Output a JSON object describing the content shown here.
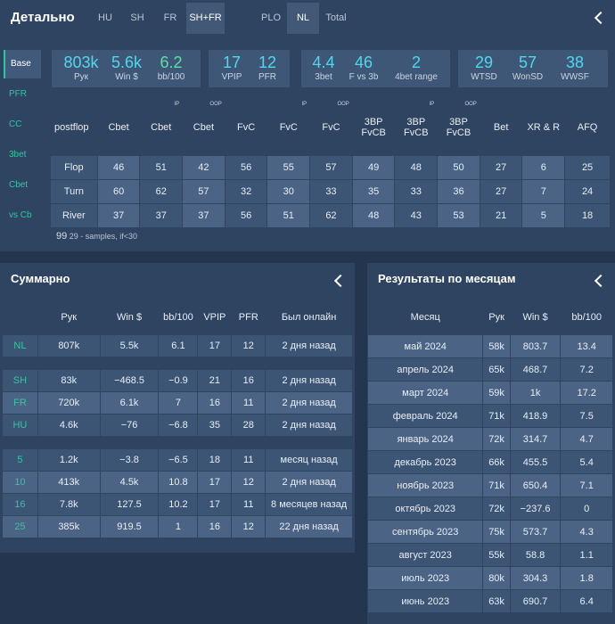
{
  "detail": {
    "title": "Детально",
    "tabs": [
      "HU",
      "SH",
      "FR",
      "SH+FR",
      "PLO",
      "NL",
      "Total"
    ],
    "sidenav": [
      "Base",
      "PFR",
      "CC",
      "3bet",
      "Cbet",
      "vs Cb"
    ],
    "stats": [
      {
        "value": "803k",
        "label": "Рук",
        "color": "cyan"
      },
      {
        "value": "5.6k",
        "label": "Win $",
        "color": "cyan"
      },
      {
        "value": "6.2",
        "label": "bb/100",
        "color": "green"
      },
      {
        "value": "17",
        "label": "VPIP",
        "color": "cyan"
      },
      {
        "value": "12",
        "label": "PFR",
        "color": "cyan"
      },
      {
        "value": "4.4",
        "label": "3bet",
        "color": "cyan"
      },
      {
        "value": "46",
        "label": "F vs 3b",
        "color": "cyan"
      },
      {
        "value": "2",
        "label": "4bet range",
        "color": "cyan"
      },
      {
        "value": "29",
        "label": "WTSD",
        "color": "cyan"
      },
      {
        "value": "57",
        "label": "WonSD",
        "color": "cyan"
      },
      {
        "value": "38",
        "label": "WWSF",
        "color": "cyan"
      }
    ],
    "postflop_headers": [
      {
        "label": "postflop",
        "sup": ""
      },
      {
        "label": "Cbet",
        "sup": ""
      },
      {
        "label": "Cbet",
        "sup": "IP"
      },
      {
        "label": "Cbet",
        "sup": "OOP"
      },
      {
        "label": "FvC",
        "sup": ""
      },
      {
        "label": "FvC",
        "sup": "IP"
      },
      {
        "label": "FvC",
        "sup": "OOP"
      },
      {
        "label": "3BP FvCB",
        "sup": ""
      },
      {
        "label": "3BP FvCB",
        "sup": "IP"
      },
      {
        "label": "3BP FvCB",
        "sup": "OOP"
      },
      {
        "label": "Bet",
        "sup": ""
      },
      {
        "label": "XR & R",
        "sup": ""
      },
      {
        "label": "AFQ",
        "sup": ""
      }
    ],
    "postflop_rows": [
      [
        "Flop",
        "46",
        "51",
        "42",
        "56",
        "55",
        "57",
        "49",
        "48",
        "50",
        "27",
        "6",
        "25"
      ],
      [
        "Turn",
        "60",
        "62",
        "57",
        "32",
        "30",
        "33",
        "35",
        "33",
        "36",
        "27",
        "7",
        "24"
      ],
      [
        "River",
        "37",
        "37",
        "37",
        "56",
        "51",
        "62",
        "48",
        "43",
        "53",
        "21",
        "5",
        "18"
      ]
    ],
    "note_value": "99",
    "note_text": "29 - samples, if<30"
  },
  "summary": {
    "title": "Суммарно",
    "headers": [
      "",
      "Рук",
      "Win $",
      "bb/100",
      "VPIP",
      "PFR",
      "Был онлайн"
    ],
    "groups": [
      [
        [
          "NL",
          "807k",
          "5.5k",
          "6.1",
          "17",
          "12",
          "2 дня назад"
        ]
      ],
      [
        [
          "SH",
          "83k",
          "−468.5",
          "−0.9",
          "21",
          "16",
          "2 дня назад"
        ],
        [
          "FR",
          "720k",
          "6.1k",
          "7",
          "16",
          "11",
          "2 дня назад"
        ],
        [
          "HU",
          "4.6k",
          "−76",
          "−6.8",
          "35",
          "28",
          "2 дня назад"
        ]
      ],
      [
        [
          "5",
          "1.2k",
          "−3.8",
          "−6.5",
          "18",
          "11",
          "месяц назад"
        ],
        [
          "10",
          "413k",
          "4.5k",
          "10.8",
          "17",
          "12",
          "2 дня назад"
        ],
        [
          "16",
          "7.8k",
          "127.5",
          "10.2",
          "17",
          "11",
          "8 месяцев назад"
        ],
        [
          "25",
          "385k",
          "919.5",
          "1",
          "16",
          "12",
          "22 дня назад"
        ]
      ]
    ]
  },
  "months": {
    "title": "Результаты по месяцам",
    "headers": [
      "Месяц",
      "Рук",
      "Win $",
      "bb/100"
    ],
    "rows": [
      [
        "май 2024",
        "58k",
        "803.7",
        "13.4"
      ],
      [
        "апрель 2024",
        "65k",
        "468.7",
        "7.2"
      ],
      [
        "март 2024",
        "59k",
        "1k",
        "17.2"
      ],
      [
        "февраль 2024",
        "71k",
        "418.9",
        "7.5"
      ],
      [
        "январь 2024",
        "72k",
        "314.7",
        "4.7"
      ],
      [
        "декабрь 2023",
        "66k",
        "455.5",
        "5.4"
      ],
      [
        "ноябрь 2023",
        "71k",
        "650.4",
        "7.1"
      ],
      [
        "октябрь 2023",
        "72k",
        "−237.6",
        "0"
      ],
      [
        "сентябрь 2023",
        "75k",
        "573.7",
        "4.3"
      ],
      [
        "август 2023",
        "55k",
        "58.8",
        "1.1"
      ],
      [
        "июль 2023",
        "80k",
        "304.3",
        "1.8"
      ],
      [
        "июнь 2023",
        "63k",
        "690.7",
        "6.4"
      ]
    ]
  }
}
